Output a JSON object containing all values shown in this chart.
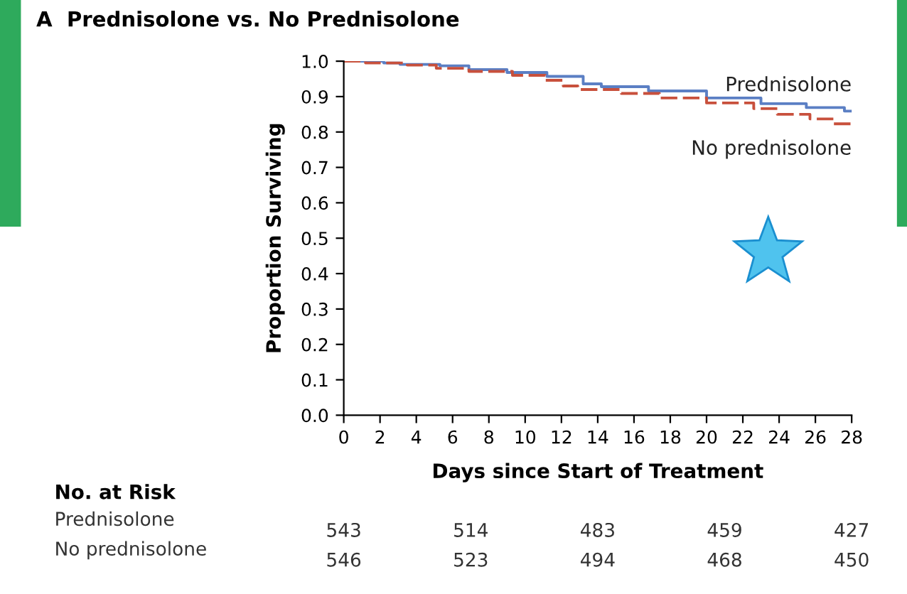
{
  "chart_data": {
    "type": "step",
    "title": "A  Prednisolone vs. No Prednisolone",
    "xlabel": "Days since Start of Treatment",
    "ylabel": "Proportion Surviving",
    "xlim": [
      0,
      28
    ],
    "xticks": [
      0,
      2,
      4,
      6,
      8,
      10,
      12,
      14,
      16,
      18,
      20,
      22,
      24,
      26,
      28
    ],
    "ylim": [
      0,
      1.0
    ],
    "yticks": [
      {
        "value": 0,
        "label": "0.0"
      },
      {
        "value": 0.1,
        "label": "0.1"
      },
      {
        "value": 0.2,
        "label": "0.2"
      },
      {
        "value": 0.3,
        "label": "0.3"
      },
      {
        "value": 0.4,
        "label": "0.4"
      },
      {
        "value": 0.5,
        "label": "0.5"
      },
      {
        "value": 0.6,
        "label": "0.6"
      },
      {
        "value": 0.7,
        "label": "0.7"
      },
      {
        "value": 0.8,
        "label": "0.8"
      },
      {
        "value": 0.9,
        "label": "0.9"
      },
      {
        "value": 1.0,
        "label": "1.0"
      }
    ],
    "grid": false,
    "legend": false,
    "series": [
      {
        "name": "Prednisolone",
        "color": "#5b7fc4",
        "line_style": "solid",
        "x": [
          0,
          2.2,
          3.1,
          5.3,
          6.9,
          9.0,
          11.2,
          13.2,
          14.2,
          16.8,
          20.0,
          23.0,
          25.5,
          27.6,
          28
        ],
        "values": [
          1.0,
          0.995,
          0.991,
          0.987,
          0.976,
          0.968,
          0.957,
          0.936,
          0.928,
          0.916,
          0.896,
          0.88,
          0.869,
          0.859,
          0.859
        ]
      },
      {
        "name": "No prednisolone",
        "color": "#c8503c",
        "line_style": "dashed",
        "x": [
          0,
          1.2,
          3.5,
          5.1,
          6.9,
          9.3,
          11.1,
          12.1,
          12.9,
          15.3,
          17.4,
          20.0,
          22.6,
          23.9,
          25.7,
          27.0,
          28
        ],
        "values": [
          1.0,
          0.995,
          0.989,
          0.98,
          0.971,
          0.96,
          0.946,
          0.93,
          0.92,
          0.909,
          0.896,
          0.882,
          0.866,
          0.85,
          0.837,
          0.823,
          0.823
        ]
      }
    ],
    "annotations": [
      "No. at Risk",
      "Prednisolone",
      "No prednisolone",
      "543",
      "514",
      "483",
      "459",
      "427",
      "546",
      "523",
      "494",
      "468",
      "450"
    ]
  }
}
